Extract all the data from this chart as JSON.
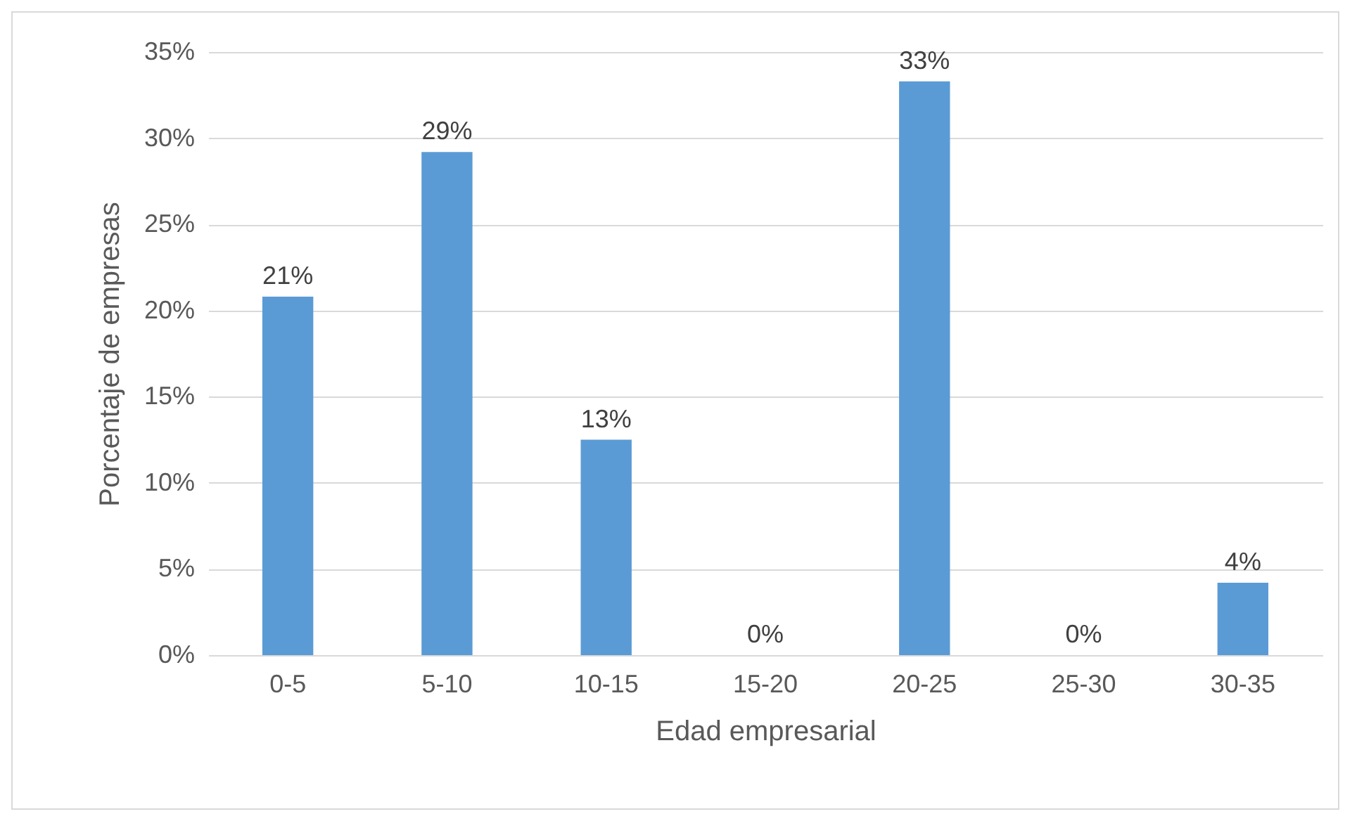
{
  "chart_data": {
    "type": "bar",
    "xlabel": "Edad empresarial",
    "ylabel": "Porcentaje de empresas",
    "categories": [
      "0-5",
      "5-10",
      "10-15",
      "15-20",
      "20-25",
      "25-30",
      "30-35"
    ],
    "values": [
      20.8,
      29.2,
      12.5,
      0,
      33.3,
      0,
      4.2
    ],
    "value_labels": [
      "21%",
      "29%",
      "13%",
      "0%",
      "33%",
      "0%",
      "4%"
    ],
    "color": "#5b9bd5",
    "ylim": [
      0,
      35
    ],
    "yticks": [
      {
        "value": 0,
        "label": "0%"
      },
      {
        "value": 5,
        "label": "5%"
      },
      {
        "value": 10,
        "label": "10%"
      },
      {
        "value": 15,
        "label": "15%"
      },
      {
        "value": 20,
        "label": "20%"
      },
      {
        "value": 25,
        "label": "25%"
      },
      {
        "value": 30,
        "label": "30%"
      },
      {
        "value": 35,
        "label": "35%"
      }
    ],
    "grid": "y"
  }
}
